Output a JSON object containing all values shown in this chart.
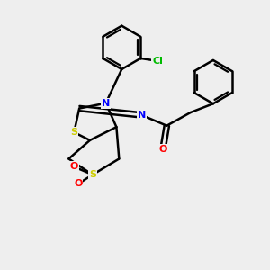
{
  "bg_color": "#eeeeee",
  "atom_colors": {
    "S": "#cccc00",
    "N": "#0000ff",
    "O": "#ff0000",
    "Cl": "#00bb00",
    "C": "#000000"
  },
  "bond_color": "#000000",
  "line_width": 1.8,
  "figsize": [
    3.0,
    3.0
  ],
  "dpi": 100
}
